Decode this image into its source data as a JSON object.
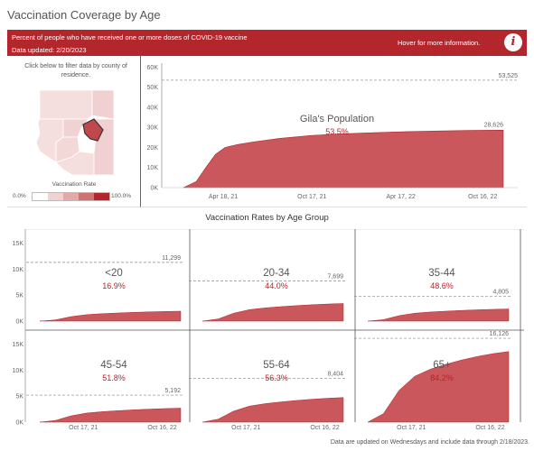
{
  "page_title": "Vaccination Coverage by Age",
  "banner": {
    "subtitle": "Percent of people who have received one or more doses of COVID-19 vaccine",
    "data_updated": "Data updated: 2/20/2023",
    "hover_hint": "Hover for more information.",
    "info_icon": "info-icon"
  },
  "map_panel": {
    "instruction": "Click below to filter data by county of residence.",
    "rate_label": "Vaccination Rate",
    "legend_min": "0.0%",
    "legend_max": "100.0%",
    "legend_colors": [
      "#ffffff",
      "#f1d2d2",
      "#e3a8a8",
      "#cf7272",
      "#b3262b"
    ],
    "selected_county": "Gila"
  },
  "chart_data": [
    {
      "type": "area",
      "title": "Gila's Population",
      "percent_label": "53.5%",
      "y_ticks": [
        "0K",
        "10K",
        "20K",
        "30K",
        "40K",
        "50K",
        "60K"
      ],
      "x_ticks": [
        "Apr 18, 21",
        "Oct 17, 21",
        "Apr 17, 22",
        "Oct 16, 22"
      ],
      "ylim": [
        0,
        62000
      ],
      "population": 53525,
      "population_label": "53,525",
      "end_value": 28626,
      "end_label": "28,626",
      "series": [
        {
          "x": [
            0.0,
            0.04,
            0.07,
            0.1,
            0.13,
            0.17,
            0.22,
            0.3,
            0.4,
            0.5,
            0.6,
            0.7,
            0.8,
            0.9,
            1.0
          ],
          "values": [
            0,
            3000,
            10000,
            16500,
            20000,
            21500,
            22800,
            24500,
            26000,
            26800,
            27400,
            27900,
            28200,
            28500,
            28626
          ]
        }
      ]
    },
    {
      "type": "area",
      "panels": [
        {
          "label": "<20",
          "percent": "16.9%",
          "population_label": "11,299",
          "population": 11299,
          "end_value": 1910
        },
        {
          "label": "20-34",
          "percent": "44.0%",
          "population_label": "7,699",
          "population": 7699,
          "end_value": 3388
        },
        {
          "label": "35-44",
          "percent": "48.6%",
          "population_label": "4,805",
          "population": 4805,
          "end_value": 2335
        },
        {
          "label": "45-54",
          "percent": "51.8%",
          "population_label": "5,192",
          "population": 5192,
          "end_value": 2690
        },
        {
          "label": "55-64",
          "percent": "56.3%",
          "population_label": "8,404",
          "population": 8404,
          "end_value": 4731
        },
        {
          "label": "65+",
          "percent": "84.2%",
          "population_label": "16,126",
          "population": 16126,
          "end_value": 13578
        }
      ],
      "y_ticks": [
        "0K",
        "5K",
        "10K",
        "15K"
      ],
      "ylim": [
        0,
        17000
      ],
      "x_ticks": [
        "Oct 17, 21",
        "Oct 16, 22"
      ],
      "shape": [
        0,
        0.12,
        0.45,
        0.65,
        0.75,
        0.82,
        0.88,
        0.93,
        0.97,
        1.0
      ]
    }
  ],
  "age_section_title": "Vaccination Rates by Age Group",
  "footnote": "Data are updated on Wednesdays and include data through 2/18/2023."
}
